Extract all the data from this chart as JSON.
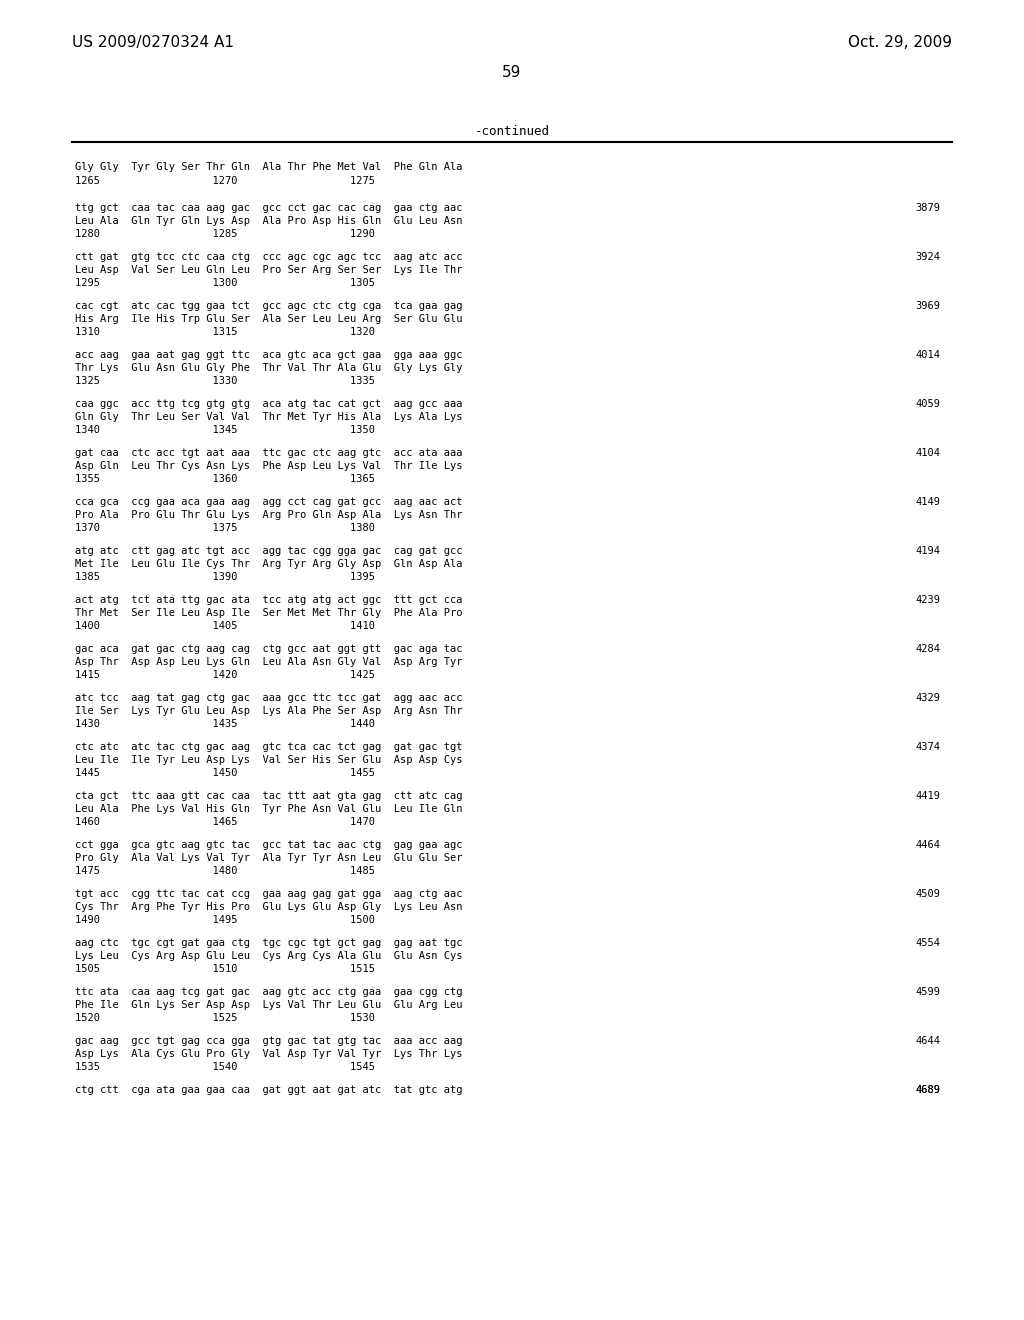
{
  "header_left": "US 2009/0270324 A1",
  "header_right": "Oct. 29, 2009",
  "page_number": "59",
  "continued_label": "-continued",
  "background_color": "#ffffff",
  "text_color": "#000000",
  "font_size_header": 11,
  "font_size_body": 7.5,
  "font_size_page": 11,
  "lines": [
    {
      "dna": "Gly Gly  Tyr Gly Ser Thr Gln  Ala Thr Phe Met Val  Phe Gln Ala",
      "aa": "",
      "nums": "1265                  1270                  1275",
      "linenum": ""
    },
    {
      "dna": "ttg gct  caa tac caa aag gac  gcc cct gac cac cag  gaa ctg aac",
      "aa": "Leu Ala  Gln Tyr Gln Lys Asp  Ala Pro Asp His Gln  Glu Leu Asn",
      "nums": "1280                  1285                  1290",
      "linenum": "3879"
    },
    {
      "dna": "ctt gat  gtg tcc ctc caa ctg  ccc agc cgc agc tcc  aag atc acc",
      "aa": "Leu Asp  Val Ser Leu Gln Leu  Pro Ser Arg Ser Ser  Lys Ile Thr",
      "nums": "1295                  1300                  1305",
      "linenum": "3924"
    },
    {
      "dna": "cac cgt  atc cac tgg gaa tct  gcc agc ctc ctg cga  tca gaa gag",
      "aa": "His Arg  Ile His Trp Glu Ser  Ala Ser Leu Leu Arg  Ser Glu Glu",
      "nums": "1310                  1315                  1320",
      "linenum": "3969"
    },
    {
      "dna": "acc aag  gaa aat gag ggt ttc  aca gtc aca gct gaa  gga aaa ggc",
      "aa": "Thr Lys  Glu Asn Glu Gly Phe  Thr Val Thr Ala Glu  Gly Lys Gly",
      "nums": "1325                  1330                  1335",
      "linenum": "4014"
    },
    {
      "dna": "caa ggc  acc ttg tcg gtg gtg  aca atg tac cat gct  aag gcc aaa",
      "aa": "Gln Gly  Thr Leu Ser Val Val  Thr Met Tyr His Ala  Lys Ala Lys",
      "nums": "1340                  1345                  1350",
      "linenum": "4059"
    },
    {
      "dna": "gat caa  ctc acc tgt aat aaa  ttc gac ctc aag gtc  acc ata aaa",
      "aa": "Asp Gln  Leu Thr Cys Asn Lys  Phe Asp Leu Lys Val  Thr Ile Lys",
      "nums": "1355                  1360                  1365",
      "linenum": "4104"
    },
    {
      "dna": "cca gca  ccg gaa aca gaa aag  agg cct cag gat gcc  aag aac act",
      "aa": "Pro Ala  Pro Glu Thr Glu Lys  Arg Pro Gln Asp Ala  Lys Asn Thr",
      "nums": "1370                  1375                  1380",
      "linenum": "4149"
    },
    {
      "dna": "atg atc  ctt gag atc tgt acc  agg tac cgg gga gac  cag gat gcc",
      "aa": "Met Ile  Leu Glu Ile Cys Thr  Arg Tyr Arg Gly Asp  Gln Asp Ala",
      "nums": "1385                  1390                  1395",
      "linenum": "4194"
    },
    {
      "dna": "act atg  tct ata ttg gac ata  tcc atg atg act ggc  ttt gct cca",
      "aa": "Thr Met  Ser Ile Leu Asp Ile  Ser Met Met Thr Gly  Phe Ala Pro",
      "nums": "1400                  1405                  1410",
      "linenum": "4239"
    },
    {
      "dna": "gac aca  gat gac ctg aag cag  ctg gcc aat ggt gtt  gac aga tac",
      "aa": "Asp Thr  Asp Asp Leu Lys Gln  Leu Ala Asn Gly Val  Asp Arg Tyr",
      "nums": "1415                  1420                  1425",
      "linenum": "4284"
    },
    {
      "dna": "atc tcc  aag tat gag ctg gac  aaa gcc ttc tcc gat  agg aac acc",
      "aa": "Ile Ser  Lys Tyr Glu Leu Asp  Lys Ala Phe Ser Asp  Arg Asn Thr",
      "nums": "1430                  1435                  1440",
      "linenum": "4329"
    },
    {
      "dna": "ctc atc  atc tac ctg gac aag  gtc tca cac tct gag  gat gac tgt",
      "aa": "Leu Ile  Ile Tyr Leu Asp Lys  Val Ser His Ser Glu  Asp Asp Cys",
      "nums": "1445                  1450                  1455",
      "linenum": "4374"
    },
    {
      "dna": "cta gct  ttc aaa gtt cac caa  tac ttt aat gta gag  ctt atc cag",
      "aa": "Leu Ala  Phe Lys Val His Gln  Tyr Phe Asn Val Glu  Leu Ile Gln",
      "nums": "1460                  1465                  1470",
      "linenum": "4419"
    },
    {
      "dna": "cct gga  gca gtc aag gtc tac  gcc tat tac aac ctg  gag gaa agc",
      "aa": "Pro Gly  Ala Val Lys Val Tyr  Ala Tyr Tyr Asn Leu  Glu Glu Ser",
      "nums": "1475                  1480                  1485",
      "linenum": "4464"
    },
    {
      "dna": "tgt acc  cgg ttc tac cat ccg  gaa aag gag gat gga  aag ctg aac",
      "aa": "Cys Thr  Arg Phe Tyr His Pro  Glu Lys Glu Asp Gly  Lys Leu Asn",
      "nums": "1490                  1495                  1500",
      "linenum": "4509"
    },
    {
      "dna": "aag ctc  tgc cgt gat gaa ctg  tgc cgc tgt gct gag  gag aat tgc",
      "aa": "Lys Leu  Cys Arg Asp Glu Leu  Cys Arg Cys Ala Glu  Glu Asn Cys",
      "nums": "1505                  1510                  1515",
      "linenum": "4554"
    },
    {
      "dna": "ttc ata  caa aag tcg gat gac  aag gtc acc ctg gaa  gaa cgg ctg",
      "aa": "Phe Ile  Gln Lys Ser Asp Asp  Lys Val Thr Leu Glu  Glu Arg Leu",
      "nums": "1520                  1525                  1530",
      "linenum": "4599"
    },
    {
      "dna": "gac aag  gcc tgt gag cca gga  gtg gac tat gtg tac  aaa acc aag",
      "aa": "Asp Lys  Ala Cys Glu Pro Gly  Val Asp Tyr Val Tyr  Lys Thr Lys",
      "nums": "1535                  1540                  1545",
      "linenum": "4644"
    },
    {
      "dna": "ctg ctt  cga ata gaa gaa caa  gat ggt aat gat atc  tat gtc atg",
      "aa": "",
      "nums": "",
      "linenum": "4689"
    }
  ],
  "italic_words": {
    "row1_aa": [
      "Lys",
      "Lys"
    ],
    "notes": "Some amino acid words are italic (Lys, Cys etc.) in the original"
  }
}
